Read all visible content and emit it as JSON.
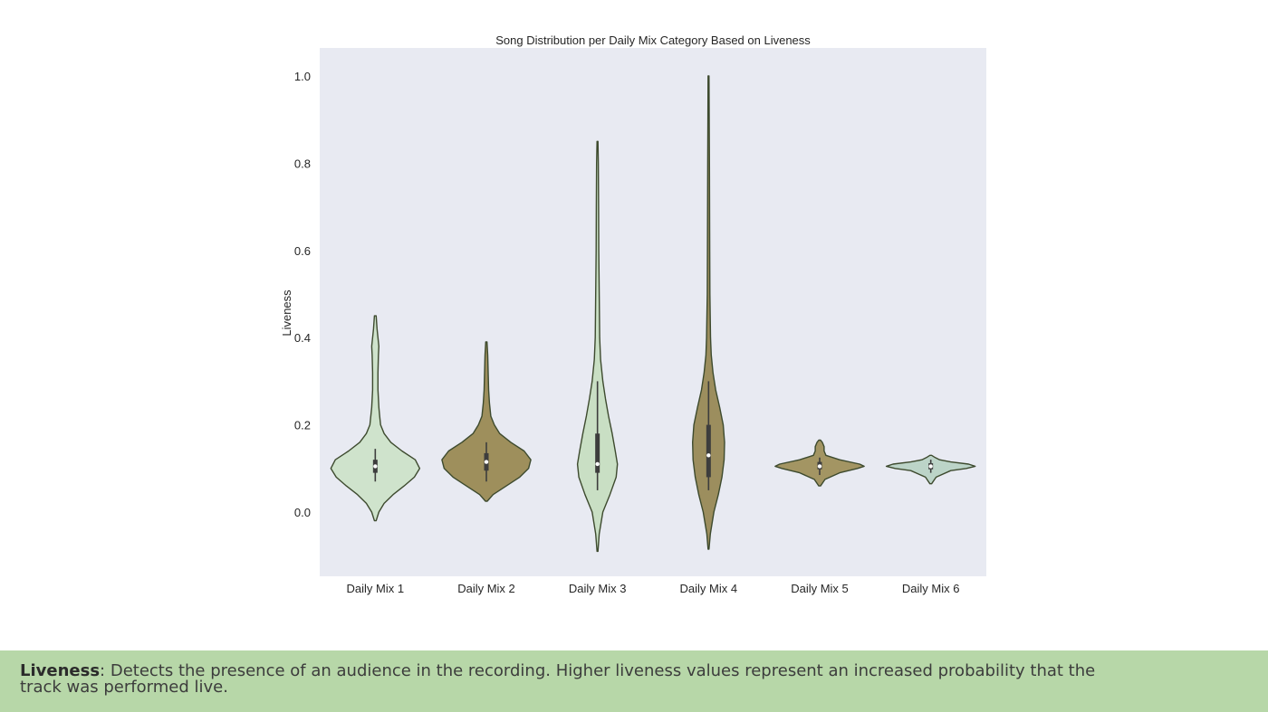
{
  "chart_data": {
    "type": "violin",
    "title": "Song Distribution per Daily Mix Category Based on Liveness",
    "xlabel": "",
    "ylabel": "Liveness",
    "ylim": [
      -0.15,
      1.06
    ],
    "yticks": [
      "0.0",
      "0.2",
      "0.4",
      "0.6",
      "0.8",
      "1.0"
    ],
    "grid": false,
    "background": "#e8eaf2",
    "categories": [
      "Daily Mix 1",
      "Daily Mix 2",
      "Daily Mix 3",
      "Daily Mix 4",
      "Daily Mix 5",
      "Daily Mix 6"
    ],
    "series": [
      {
        "category": "Daily Mix 1",
        "color": "#cfe3cc",
        "min": -0.02,
        "max": 0.45,
        "q1": 0.09,
        "median": 0.105,
        "q3": 0.12,
        "whisker_low": 0.07,
        "whisker_high": 0.145,
        "density": [
          [
            -0.02,
            0.02
          ],
          [
            0.0,
            0.08
          ],
          [
            0.02,
            0.2
          ],
          [
            0.04,
            0.4
          ],
          [
            0.06,
            0.65
          ],
          [
            0.08,
            0.88
          ],
          [
            0.1,
            1.0
          ],
          [
            0.12,
            0.9
          ],
          [
            0.14,
            0.6
          ],
          [
            0.16,
            0.35
          ],
          [
            0.18,
            0.2
          ],
          [
            0.2,
            0.12
          ],
          [
            0.22,
            0.1
          ],
          [
            0.24,
            0.08
          ],
          [
            0.28,
            0.06
          ],
          [
            0.32,
            0.06
          ],
          [
            0.36,
            0.07
          ],
          [
            0.38,
            0.08
          ],
          [
            0.4,
            0.06
          ],
          [
            0.42,
            0.04
          ],
          [
            0.45,
            0.02
          ]
        ]
      },
      {
        "category": "Daily Mix 2",
        "color": "#9e8f5c",
        "min": 0.025,
        "max": 0.39,
        "q1": 0.095,
        "median": 0.115,
        "q3": 0.135,
        "whisker_low": 0.07,
        "whisker_high": 0.16,
        "density": [
          [
            0.025,
            0.02
          ],
          [
            0.04,
            0.15
          ],
          [
            0.06,
            0.45
          ],
          [
            0.08,
            0.75
          ],
          [
            0.1,
            0.95
          ],
          [
            0.12,
            1.0
          ],
          [
            0.14,
            0.85
          ],
          [
            0.16,
            0.55
          ],
          [
            0.18,
            0.3
          ],
          [
            0.2,
            0.18
          ],
          [
            0.22,
            0.1
          ],
          [
            0.25,
            0.07
          ],
          [
            0.28,
            0.05
          ],
          [
            0.32,
            0.04
          ],
          [
            0.36,
            0.03
          ],
          [
            0.39,
            0.015
          ]
        ]
      },
      {
        "category": "Daily Mix 3",
        "color": "#c9dfc4",
        "min": -0.09,
        "max": 0.85,
        "q1": 0.09,
        "median": 0.11,
        "q3": 0.18,
        "whisker_low": 0.05,
        "whisker_high": 0.3,
        "density": [
          [
            -0.09,
            0.01
          ],
          [
            -0.05,
            0.04
          ],
          [
            0.0,
            0.12
          ],
          [
            0.04,
            0.28
          ],
          [
            0.08,
            0.42
          ],
          [
            0.11,
            0.45
          ],
          [
            0.14,
            0.4
          ],
          [
            0.18,
            0.33
          ],
          [
            0.22,
            0.25
          ],
          [
            0.26,
            0.18
          ],
          [
            0.3,
            0.12
          ],
          [
            0.35,
            0.07
          ],
          [
            0.4,
            0.05
          ],
          [
            0.5,
            0.04
          ],
          [
            0.6,
            0.03
          ],
          [
            0.7,
            0.025
          ],
          [
            0.8,
            0.02
          ],
          [
            0.85,
            0.01
          ]
        ]
      },
      {
        "category": "Daily Mix 4",
        "color": "#9c8e5e",
        "min": -0.085,
        "max": 1.0,
        "q1": 0.08,
        "median": 0.13,
        "q3": 0.2,
        "whisker_low": 0.05,
        "whisker_high": 0.3,
        "density": [
          [
            -0.085,
            0.01
          ],
          [
            -0.05,
            0.04
          ],
          [
            0.0,
            0.12
          ],
          [
            0.04,
            0.22
          ],
          [
            0.08,
            0.3
          ],
          [
            0.12,
            0.35
          ],
          [
            0.16,
            0.36
          ],
          [
            0.2,
            0.33
          ],
          [
            0.24,
            0.25
          ],
          [
            0.28,
            0.16
          ],
          [
            0.32,
            0.1
          ],
          [
            0.36,
            0.06
          ],
          [
            0.4,
            0.045
          ],
          [
            0.5,
            0.03
          ],
          [
            0.6,
            0.025
          ],
          [
            0.8,
            0.02
          ],
          [
            1.0,
            0.01
          ]
        ]
      },
      {
        "category": "Daily Mix 5",
        "color": "#a39563",
        "min": 0.06,
        "max": 0.165,
        "q1": 0.098,
        "median": 0.105,
        "q3": 0.115,
        "whisker_low": 0.085,
        "whisker_high": 0.125,
        "density": [
          [
            0.06,
            0.02
          ],
          [
            0.075,
            0.12
          ],
          [
            0.09,
            0.45
          ],
          [
            0.1,
            0.85
          ],
          [
            0.105,
            1.0
          ],
          [
            0.11,
            0.9
          ],
          [
            0.12,
            0.45
          ],
          [
            0.13,
            0.14
          ],
          [
            0.14,
            0.1
          ],
          [
            0.15,
            0.1
          ],
          [
            0.16,
            0.06
          ],
          [
            0.165,
            0.02
          ]
        ]
      },
      {
        "category": "Daily Mix 6",
        "color": "#bcd4c8",
        "min": 0.065,
        "max": 0.13,
        "q1": 0.098,
        "median": 0.105,
        "q3": 0.112,
        "whisker_low": 0.09,
        "whisker_high": 0.12,
        "density": [
          [
            0.065,
            0.02
          ],
          [
            0.08,
            0.12
          ],
          [
            0.095,
            0.45
          ],
          [
            0.1,
            0.8
          ],
          [
            0.105,
            1.0
          ],
          [
            0.11,
            0.85
          ],
          [
            0.115,
            0.45
          ],
          [
            0.12,
            0.2
          ],
          [
            0.125,
            0.1
          ],
          [
            0.13,
            0.02
          ]
        ]
      }
    ]
  },
  "footer": {
    "term": "Liveness",
    "separator": ": ",
    "description": "Detects the presence of an audience in the recording. Higher liveness values represent an increased probability that the track was performed live."
  }
}
